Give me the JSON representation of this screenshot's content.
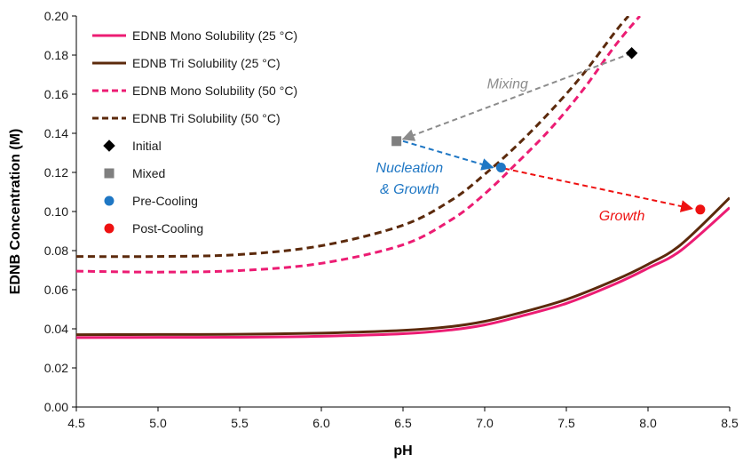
{
  "chart_data": {
    "type": "line",
    "xlabel": "pH",
    "ylabel": "EDNB Concentration (M)",
    "xlim": [
      4.5,
      8.5
    ],
    "ylim": [
      0.0,
      0.2
    ],
    "xticks": [
      "4.5",
      "5.0",
      "5.5",
      "6.0",
      "6.5",
      "7.0",
      "7.5",
      "8.0",
      "8.5"
    ],
    "yticks": [
      "0.00",
      "0.02",
      "0.04",
      "0.06",
      "0.08",
      "0.10",
      "0.12",
      "0.14",
      "0.16",
      "0.18",
      "0.20"
    ],
    "grid": false,
    "legend_position": "top-left",
    "series": [
      {
        "name": "EDNB Mono Solubility (25 °C)",
        "color": "#ec1c73",
        "dash": "solid",
        "x": [
          4.5,
          5.0,
          5.5,
          6.0,
          6.5,
          6.8,
          7.0,
          7.2,
          7.5,
          7.8,
          8.0,
          8.2,
          8.5
        ],
        "y": [
          0.0355,
          0.0356,
          0.0357,
          0.0362,
          0.0375,
          0.0395,
          0.042,
          0.046,
          0.053,
          0.063,
          0.071,
          0.08,
          0.102
        ]
      },
      {
        "name": "EDNB Tri Solubility (25 °C)",
        "color": "#5c2a0c",
        "dash": "solid",
        "x": [
          4.5,
          5.0,
          5.5,
          6.0,
          6.5,
          6.8,
          7.0,
          7.2,
          7.5,
          7.8,
          8.0,
          8.2,
          8.5
        ],
        "y": [
          0.037,
          0.0371,
          0.0372,
          0.0378,
          0.0392,
          0.0412,
          0.0438,
          0.0478,
          0.055,
          0.065,
          0.073,
          0.083,
          0.107
        ]
      },
      {
        "name": "EDNB Mono Solubility (50 °C)",
        "color": "#ec1c73",
        "dash": "dashed",
        "x": [
          4.5,
          5.0,
          5.5,
          6.0,
          6.5,
          6.8,
          7.0,
          7.2,
          7.4,
          7.6,
          7.8,
          7.95
        ],
        "y": [
          0.0695,
          0.069,
          0.0698,
          0.0735,
          0.083,
          0.096,
          0.109,
          0.125,
          0.142,
          0.162,
          0.185,
          0.2
        ]
      },
      {
        "name": "EDNB Tri Solubility (50 °C)",
        "color": "#5c2a0c",
        "dash": "dashed",
        "x": [
          4.5,
          5.0,
          5.5,
          6.0,
          6.5,
          6.8,
          7.0,
          7.2,
          7.4,
          7.6,
          7.8,
          7.88
        ],
        "y": [
          0.077,
          0.077,
          0.078,
          0.0825,
          0.093,
          0.106,
          0.119,
          0.134,
          0.151,
          0.17,
          0.192,
          0.2
        ]
      }
    ],
    "points": [
      {
        "name": "Initial",
        "marker": "diamond",
        "color": "#000000",
        "x": 7.9,
        "y": 0.181
      },
      {
        "name": "Mixed",
        "marker": "square",
        "color": "#7f7f7f",
        "x": 6.46,
        "y": 0.136
      },
      {
        "name": "Pre-Cooling",
        "marker": "circle",
        "color": "#1f77c4",
        "x": 7.1,
        "y": 0.1225
      },
      {
        "name": "Post-Cooling",
        "marker": "circle",
        "color": "#ee1111",
        "x": 8.32,
        "y": 0.101
      }
    ],
    "arrows": [
      {
        "from": [
          7.9,
          0.181
        ],
        "to": [
          6.5,
          0.137
        ],
        "color": "#8c8c8c"
      },
      {
        "from": [
          6.5,
          0.136
        ],
        "to": [
          7.05,
          0.1225
        ],
        "color": "#1f77c4"
      },
      {
        "from": [
          7.12,
          0.122
        ],
        "to": [
          8.27,
          0.1015
        ],
        "color": "#ee1111"
      }
    ],
    "annotations": [
      {
        "text": "Mixing",
        "color": "#8c8c8c",
        "x": 7.14,
        "y": 0.163
      },
      {
        "text": "Nucleation",
        "color": "#1f77c4",
        "x": 6.54,
        "y": 0.12
      },
      {
        "text": "& Growth",
        "color": "#1f77c4",
        "x": 6.54,
        "y": 0.109
      },
      {
        "text": "Growth",
        "color": "#ee1111",
        "x": 7.84,
        "y": 0.0955
      }
    ]
  }
}
